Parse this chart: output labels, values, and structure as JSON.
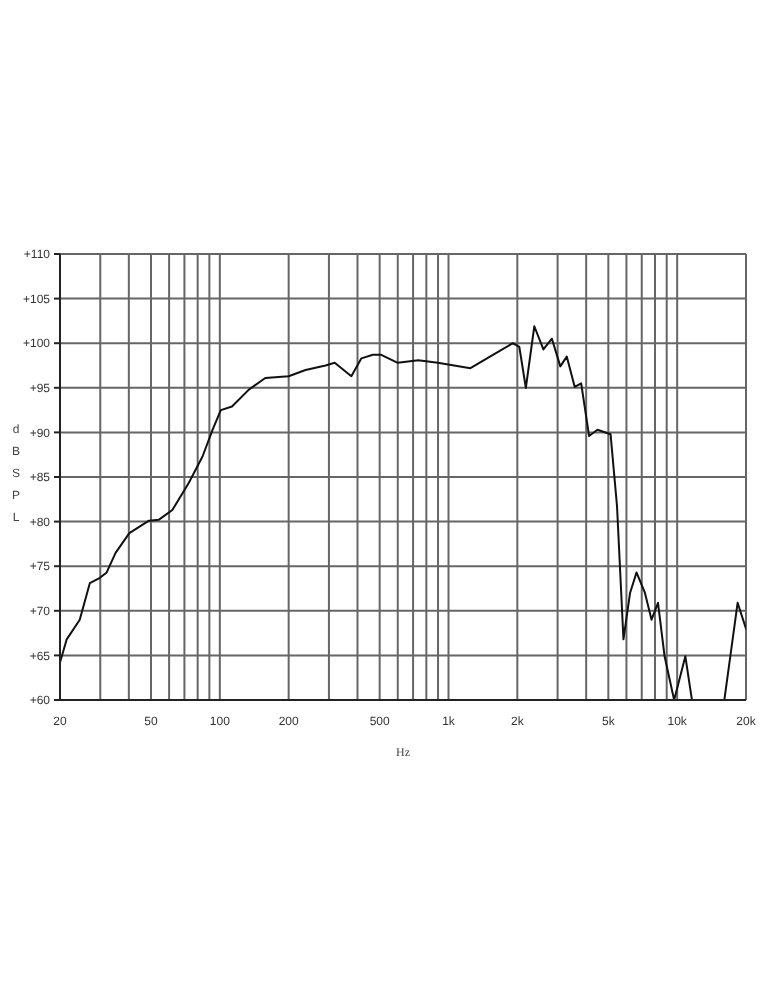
{
  "chart_data": {
    "type": "line",
    "xlabel": "Hz",
    "ylabel": "dBSPL",
    "x": [
      20,
      21.4,
      24.4,
      27,
      29.9,
      32,
      35,
      40.2,
      49,
      54,
      62,
      73,
      84,
      93,
      101,
      113,
      134,
      158,
      200,
      237,
      290,
      318,
      376,
      416,
      467,
      508,
      600,
      738,
      898,
      1247,
      1518,
      1910,
      2040,
      2179,
      2373,
      2600,
      2833,
      3083,
      3290,
      3565,
      3804,
      4118,
      4480,
      5113,
      5458,
      5823,
      6223,
      6640,
      7230,
      7727,
      8245,
      8810,
      9700,
      10860,
      11590,
      13000,
      16100,
      18380,
      20000
    ],
    "series": [
      {
        "color": "#111111",
        "values": [
          64.2,
          66.8,
          69,
          73.1,
          73.7,
          74.3,
          76.5,
          78.7,
          80.1,
          80.2,
          81.3,
          84.3,
          87.3,
          90.3,
          92.5,
          92.9,
          94.8,
          96.1,
          96.3,
          97,
          97.5,
          97.8,
          96.3,
          98.3,
          98.7,
          98.7,
          97.8,
          98.1,
          97.8,
          97.2,
          98.5,
          100,
          99.6,
          95,
          101.9,
          99.3,
          100.5,
          97.4,
          98.5,
          95.1,
          95.5,
          89.6,
          90.3,
          89.8,
          81.7,
          66.8,
          72,
          74.3,
          72,
          69,
          70.9,
          64.9,
          60,
          64.9,
          60.1,
          null,
          60.1,
          70.9,
          68
        ]
      }
    ],
    "log": "x",
    "xlim": [
      20,
      20000
    ],
    "xticks": [
      20,
      {
        "value": 30,
        "label": null
      },
      {
        "value": 40,
        "label": null
      },
      50,
      {
        "value": 60,
        "label": null
      },
      {
        "value": 70,
        "label": null
      },
      {
        "value": 80,
        "label": null
      },
      {
        "value": 90,
        "label": null
      },
      100,
      200,
      {
        "value": 300,
        "label": null
      },
      {
        "value": 400,
        "label": null
      },
      500,
      {
        "value": 600,
        "label": null
      },
      {
        "value": 700,
        "label": null
      },
      {
        "value": 800,
        "label": null
      },
      {
        "value": 900,
        "label": null
      },
      {
        "value": 1000,
        "label": "1k"
      },
      {
        "value": 2000,
        "label": "2k"
      },
      {
        "value": 3000,
        "label": null
      },
      {
        "value": 4000,
        "label": null
      },
      {
        "value": 5000,
        "label": "5k"
      },
      {
        "value": 6000,
        "label": null
      },
      {
        "value": 7000,
        "label": null
      },
      {
        "value": 8000,
        "label": null
      },
      {
        "value": 9000,
        "label": null
      },
      {
        "value": 10000,
        "label": "10k"
      },
      {
        "value": 20000,
        "label": "20k"
      }
    ],
    "ylim": [
      60,
      110
    ],
    "yticks": [
      {
        "value": 60,
        "label": "+60"
      },
      {
        "value": 65,
        "label": "+65"
      },
      {
        "value": 70,
        "label": "+70"
      },
      {
        "value": 75,
        "label": "+75"
      },
      {
        "value": 80,
        "label": "+80"
      },
      {
        "value": 85,
        "label": "+85"
      },
      {
        "value": 90,
        "label": "+90"
      },
      {
        "value": 95,
        "label": "+95"
      },
      {
        "value": 100,
        "label": "+100"
      },
      {
        "value": 105,
        "label": "+105"
      },
      {
        "value": 110,
        "label": "+110"
      }
    ],
    "grid": true,
    "marker": "none",
    "line_style": "solid",
    "legend": false
  }
}
